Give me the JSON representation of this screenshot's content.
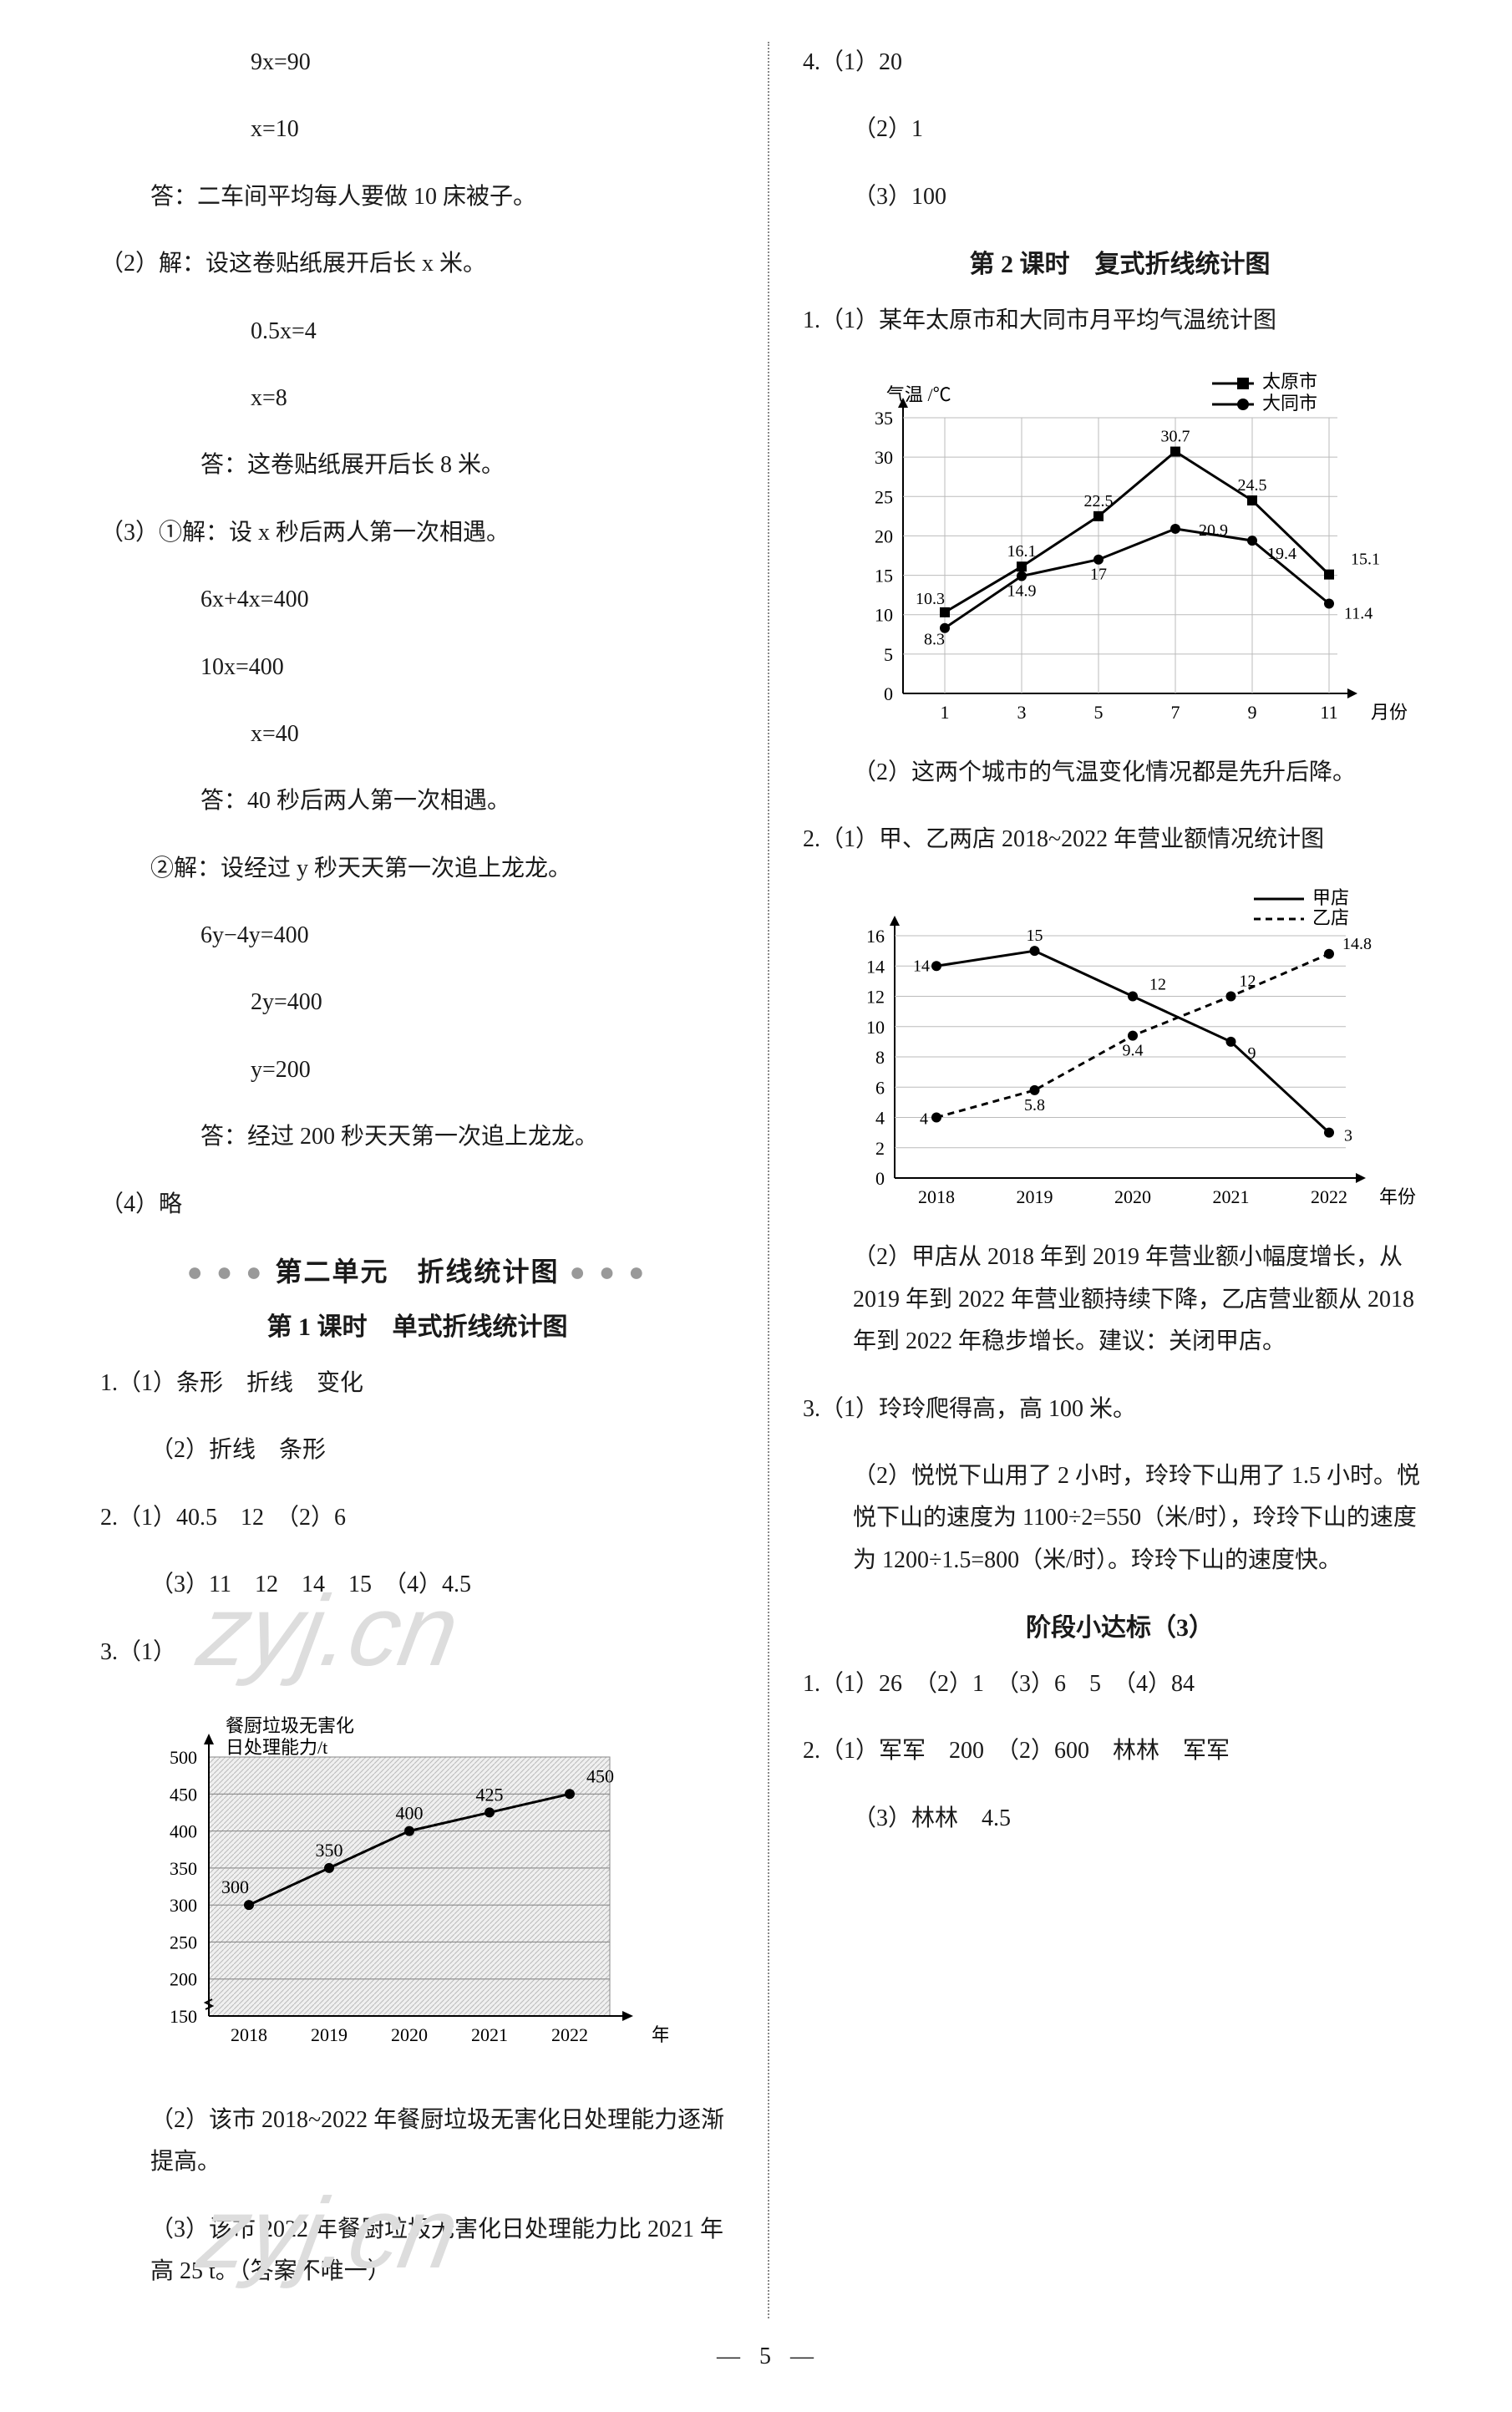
{
  "left": {
    "eqs1": [
      "9x=90",
      "x=10"
    ],
    "ans1": "答：二车间平均每人要做 10 床被子。",
    "p2_set": "（2）解：设这卷贴纸展开后长 x 米。",
    "eqs2": [
      "0.5x=4",
      "x=8"
    ],
    "ans2": "答：这卷贴纸展开后长 8 米。",
    "p3_1_set": "（3）①解：设 x 秒后两人第一次相遇。",
    "eqs3a": [
      "6x+4x=400",
      "10x=400",
      "x=40"
    ],
    "ans3a": "答：40 秒后两人第一次相遇。",
    "p3_2_set": "②解：设经过 y 秒天天第一次追上龙龙。",
    "eqs3b": [
      "6y−4y=400",
      "2y=400",
      "y=200"
    ],
    "ans3b": "答：经过 200 秒天天第一次追上龙龙。",
    "p4": "（4）略",
    "unit2_title": "第二单元　折线统计图",
    "lesson1_title": "第 1 课时　单式折线统计图",
    "l1_q1_1": "1.（1）条形　折线　变化",
    "l1_q1_2": "（2）折线　条形",
    "l1_q2_1": "2.（1）40.5　12　（2）6",
    "l1_q2_2": "（3）11　12　14　15　（4）4.5",
    "l1_q3_1": "3.（1）",
    "chart_left": {
      "title1": "餐厨垃圾无害化",
      "title2": "日处理能力/t",
      "ylim": [
        150,
        500
      ],
      "ytick_step": 50,
      "xcats": [
        "2018",
        "2019",
        "2020",
        "2021",
        "2022"
      ],
      "xlabel_end": "年份",
      "values": [
        300,
        350,
        400,
        425,
        450
      ],
      "labels": [
        "300",
        "350",
        "400",
        "425",
        "450"
      ],
      "bg": "#f5f5f5",
      "grid_color": "#999999"
    },
    "l1_q3_2": "（2）该市 2018~2022 年餐厨垃圾无害化日处理能力逐渐提高。",
    "l1_q3_3": "（3）该市 2022 年餐厨垃圾无害化日处理能力比 2021 年高 25 t。（答案不唯一）"
  },
  "right": {
    "r4_1": "4.（1）20",
    "r4_2": "（2）1",
    "r4_3": "（3）100",
    "lesson2_title": "第 2 课时　复式折线统计图",
    "r1_1": "1.（1）某年太原市和大同市月平均气温统计图",
    "chart_temp": {
      "ylabel": "气温 /℃",
      "legend": [
        "太原市",
        "大同市"
      ],
      "legend_markers": [
        "square",
        "circle"
      ],
      "ylim": [
        0,
        35
      ],
      "ytick_step": 5,
      "xcats": [
        "1",
        "3",
        "5",
        "7",
        "9",
        "11"
      ],
      "xlabel_end": "月份",
      "taiyuan": [
        10.3,
        16.1,
        22.5,
        30.7,
        24.5,
        15.1
      ],
      "datong": [
        8.3,
        14.9,
        17,
        20.9,
        19.4,
        11.4
      ],
      "taiyuan_lbl": [
        "10.3",
        "16.1",
        "22.5",
        "30.7",
        "24.5",
        "15.1"
      ],
      "datong_lbl": [
        "8.3",
        "14.9",
        "17",
        "20.9",
        "19.4",
        "11.4"
      ],
      "series1_color": "#000000",
      "series2_color": "#000000"
    },
    "r1_2": "（2）这两个城市的气温变化情况都是先升后降。",
    "r2_1": "2.（1）甲、乙两店 2018~2022 年营业额情况统计图",
    "chart_shop": {
      "legend": [
        "甲店",
        "乙店"
      ],
      "ylim": [
        0,
        16
      ],
      "ytick_step": 2,
      "xcats": [
        "2018",
        "2019",
        "2020",
        "2021",
        "2022"
      ],
      "xlabel_end": "年份",
      "jia": [
        14,
        15,
        12,
        9,
        3
      ],
      "yi": [
        4,
        5.8,
        9.4,
        12,
        14.8
      ],
      "jia_lbl": [
        "14",
        "15",
        "12",
        "9",
        "3"
      ],
      "yi_lbl": [
        "4",
        "5.8",
        "9.4",
        "12",
        "14.8"
      ],
      "jia_style": "solid",
      "yi_style": "dashed"
    },
    "r2_2": "（2）甲店从 2018 年到 2019 年营业额小幅度增长，从 2019 年到 2022 年营业额持续下降，乙店营业额从 2018 年到 2022 年稳步增长。建议：关闭甲店。",
    "r3_1": "3.（1）玲玲爬得高，高 100 米。",
    "r3_2": "（2）悦悦下山用了 2 小时，玲玲下山用了 1.5 小时。悦悦下山的速度为 1100÷2=550（米/时），玲玲下山的速度为 1200÷1.5=800（米/时）。玲玲下山的速度快。",
    "stage_title": "阶段小达标（3）",
    "s1": "1.（1）26　（2）1　（3）6　5　（4）84",
    "s2": "2.（1）军军　200　（2）600　林林　军军",
    "s3": "（3）林林　4.5"
  },
  "page_num": "5",
  "watermark": "zyj.cn"
}
